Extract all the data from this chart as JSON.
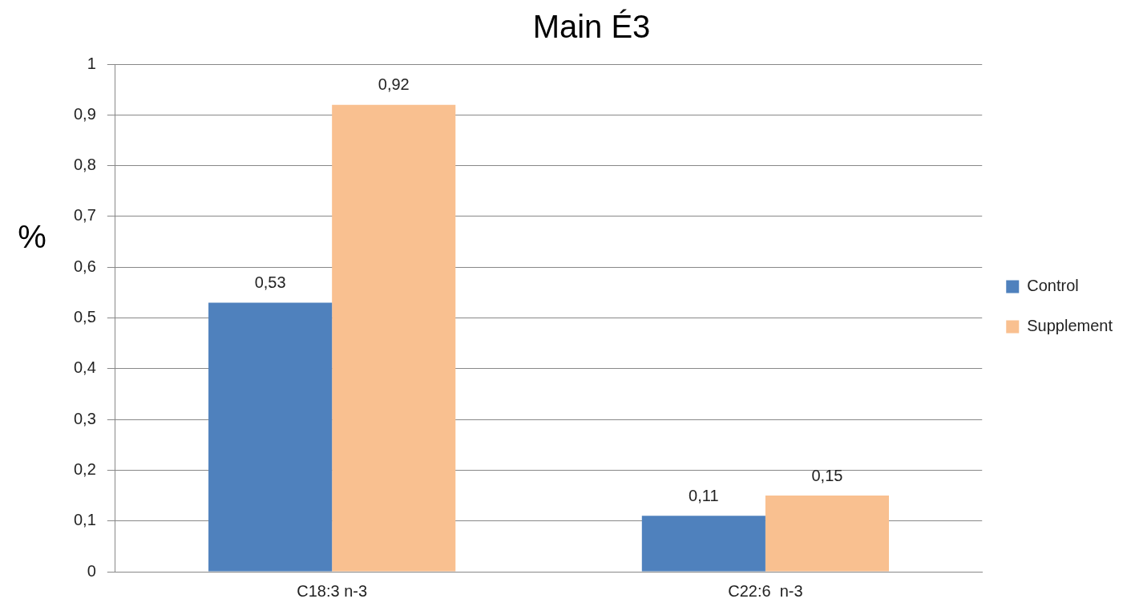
{
  "chart_data": {
    "type": "bar",
    "title": "Main É3",
    "ylabel": "%",
    "categories": [
      "C18:3 n-3",
      "C22:6  n-3"
    ],
    "series": [
      {
        "name": "Control",
        "color": "#4f81bd",
        "values": [
          0.53,
          0.11
        ],
        "value_labels": [
          "0,53",
          "0,11"
        ]
      },
      {
        "name": "Supplement",
        "color": "#f9c090",
        "values": [
          0.92,
          0.15
        ],
        "value_labels": [
          "0,92",
          "0,15"
        ]
      }
    ],
    "ylim": [
      0,
      1
    ],
    "yticks": [
      0,
      {
        "value": 0.1,
        "label": "0,1"
      },
      {
        "value": 0.2,
        "label": "0,2"
      },
      {
        "value": 0.3,
        "label": "0,3"
      },
      {
        "value": 0.4,
        "label": "0,4"
      },
      {
        "value": 0.5,
        "label": "0,5"
      },
      {
        "value": 0.6,
        "label": "0,6"
      },
      {
        "value": 0.7,
        "label": "0,7"
      },
      {
        "value": 0.8,
        "label": "0,8"
      },
      {
        "value": 0.9,
        "label": "0,9"
      },
      1
    ],
    "grid": "y",
    "legend": "right"
  }
}
